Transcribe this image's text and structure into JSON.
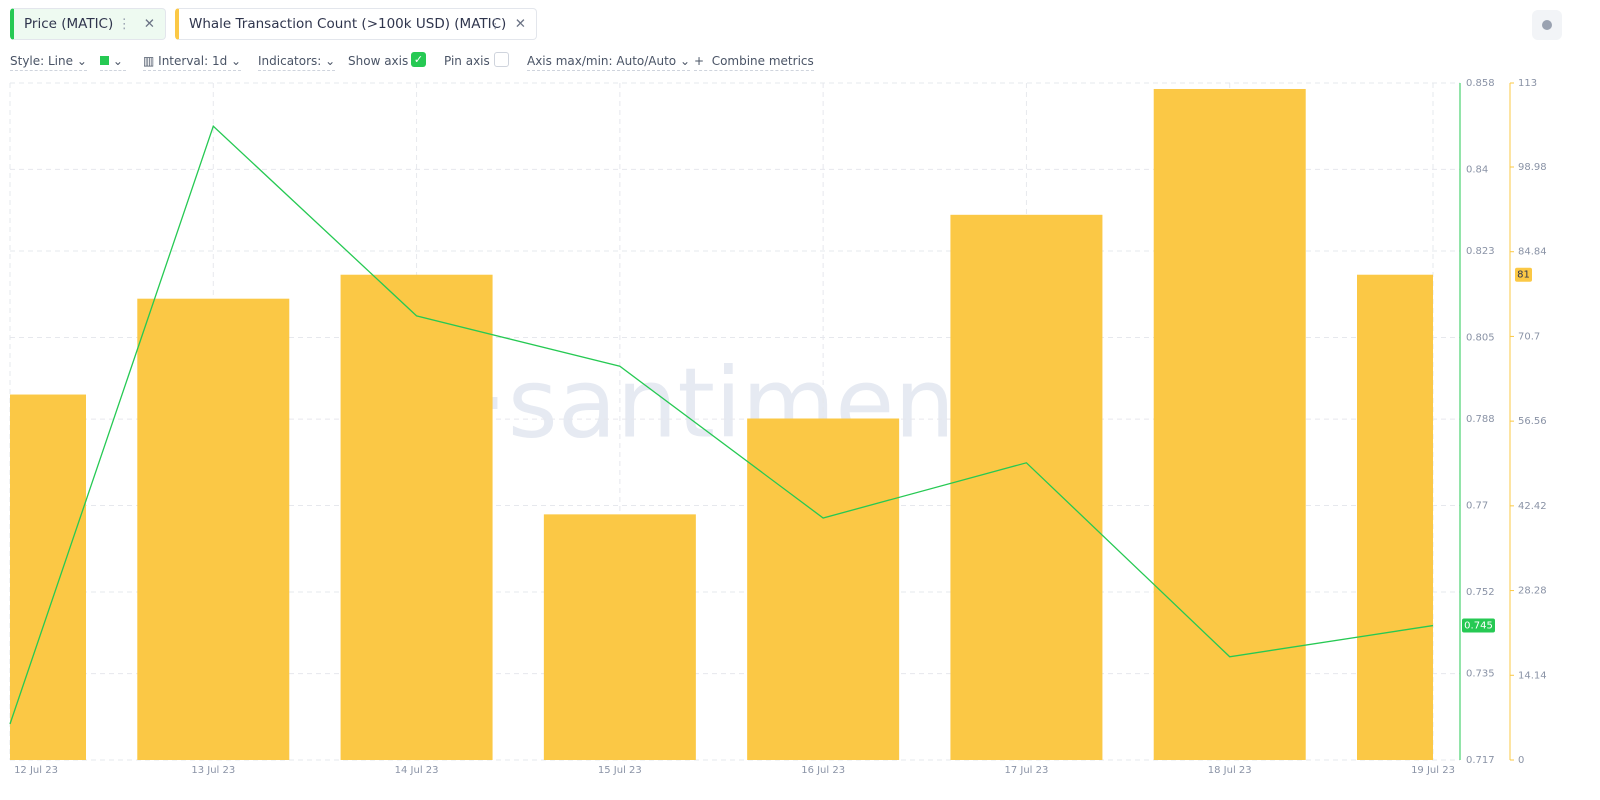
{
  "toolbar": {
    "style": "Style: Line",
    "interval": "Interval: 1d",
    "indicators": "Indicators:",
    "show_axis": "Show axis",
    "pin_axis": "Pin axis",
    "axis_minmax": "Axis max/min: Auto/Auto",
    "combine": "Combine metrics"
  },
  "chart_data": {
    "type": "combo",
    "watermark": "·santiment",
    "grid": true,
    "categories": [
      "12 Jul 23",
      "13 Jul 23",
      "14 Jul 23",
      "15 Jul 23",
      "16 Jul 23",
      "17 Jul 23",
      "18 Jul 23",
      "19 Jul 23"
    ],
    "ylim": [
      0.717,
      0.858
    ],
    "yticks": [
      0.717,
      0.735,
      0.752,
      0.77,
      0.788,
      0.805,
      0.823,
      0.84,
      0.858
    ],
    "y2lim": [
      0,
      113
    ],
    "y2ticks": [
      0,
      14.14,
      28.28,
      42.42,
      56.56,
      70.7,
      84.84,
      98.98,
      113
    ],
    "series": [
      {
        "name": "Price (MATIC)",
        "type": "line",
        "color": "#26c953",
        "values": [
          0.7245,
          0.849,
          0.8095,
          0.799,
          0.7674,
          0.7789,
          0.7385,
          0.745
        ]
      },
      {
        "name": "Whale Transaction Count (>100k USD) (MATIC)",
        "type": "bar",
        "axis": "y2",
        "color": "#fbc845",
        "values": [
          61,
          77,
          81,
          41,
          57,
          91,
          112,
          81
        ]
      }
    ]
  }
}
